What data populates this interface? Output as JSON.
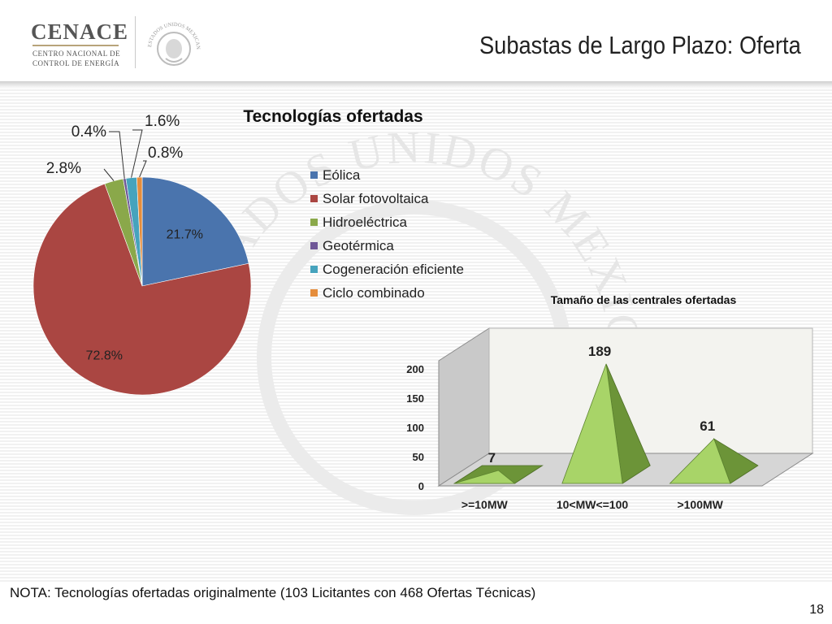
{
  "header": {
    "logo_name": "CENACE",
    "logo_sub_1": "CENTRO NACIONAL DE",
    "logo_sub_2": "CONTROL DE ENERGÍA",
    "seal_text": "ESTADOS UNIDOS MEXICANOS",
    "title": "Subastas de Largo Plazo: Oferta"
  },
  "watermark_text": "ESTADOS UNIDOS MEXICANOS",
  "chart_data": [
    {
      "type": "pie",
      "title": "Tecnologías ofertadas",
      "categories": [
        "Eólica",
        "Solar fotovoltaica",
        "Hidroeléctrica",
        "Geotérmica",
        "Cogeneración eficiente",
        "Ciclo combinado"
      ],
      "values": [
        21.7,
        72.8,
        2.8,
        0.4,
        1.6,
        0.8
      ],
      "labels": [
        "21.7%",
        "72.8%",
        "2.8%",
        "0.4%",
        "1.6%",
        "0.8%"
      ],
      "colors": [
        "#4a74ad",
        "#aa4642",
        "#8aa84a",
        "#6f5797",
        "#46a3bd",
        "#e58d3c"
      ],
      "legend_position": "right"
    },
    {
      "type": "bar",
      "style": "3d-pyramid",
      "title": "Tamaño de las centrales ofertadas",
      "categories": [
        ">=10MW",
        "10<MW<=100",
        ">100MW"
      ],
      "values": [
        7,
        189,
        61
      ],
      "yticks": [
        0,
        50,
        100,
        150,
        200
      ],
      "ylim": [
        0,
        200
      ],
      "color": "#9bc859",
      "legend_position": "none"
    }
  ],
  "footer": {
    "note": "NOTA: Tecnologías ofertadas originalmente (103 Licitantes con 468 Ofertas Técnicas)",
    "page_number": "18"
  }
}
